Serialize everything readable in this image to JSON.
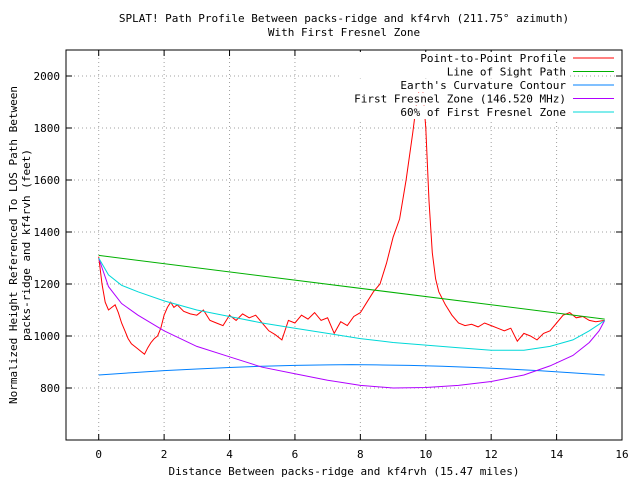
{
  "chart_data": {
    "type": "line",
    "title": "SPLAT! Path Profile Between packs-ridge and kf4rvh (211.75° azimuth)",
    "subtitle": "With First Fresnel Zone",
    "xlabel": "Distance Between packs-ridge and kf4rvh (15.47 miles)",
    "ylabel_lines": [
      "Normalized Height Referenced To LOS Path Between",
      "packs-ridge and kf4rvh (feet)"
    ],
    "xlim": [
      -1,
      16
    ],
    "ylim": [
      600,
      2100
    ],
    "x_ticks": [
      0,
      2,
      4,
      6,
      8,
      10,
      12,
      14,
      16
    ],
    "y_ticks": [
      800,
      1000,
      1200,
      1400,
      1600,
      1800,
      2000
    ],
    "grid": true,
    "legend_position": "top-right",
    "series": [
      {
        "name": "Point-to-Point Profile",
        "color": "#ff0000",
        "x": [
          0,
          0.1,
          0.2,
          0.3,
          0.4,
          0.5,
          0.6,
          0.7,
          0.8,
          0.9,
          1.0,
          1.1,
          1.2,
          1.3,
          1.4,
          1.5,
          1.6,
          1.7,
          1.8,
          1.9,
          2.0,
          2.1,
          2.2,
          2.3,
          2.4,
          2.6,
          2.8,
          3.0,
          3.2,
          3.4,
          3.6,
          3.8,
          4.0,
          4.2,
          4.4,
          4.6,
          4.8,
          5.0,
          5.2,
          5.4,
          5.6,
          5.8,
          6.0,
          6.2,
          6.4,
          6.6,
          6.8,
          7.0,
          7.2,
          7.4,
          7.6,
          7.8,
          8.0,
          8.2,
          8.4,
          8.6,
          8.8,
          9.0,
          9.2,
          9.4,
          9.6,
          9.7,
          9.8,
          9.9,
          10.0,
          10.1,
          10.2,
          10.3,
          10.4,
          10.6,
          10.8,
          11.0,
          11.2,
          11.4,
          11.6,
          11.8,
          12.0,
          12.2,
          12.4,
          12.6,
          12.8,
          13.0,
          13.2,
          13.4,
          13.6,
          13.8,
          14.0,
          14.2,
          14.4,
          14.6,
          14.8,
          15.0,
          15.2,
          15.47
        ],
        "y": [
          1305,
          1200,
          1130,
          1100,
          1110,
          1120,
          1090,
          1050,
          1020,
          990,
          970,
          960,
          950,
          940,
          930,
          955,
          975,
          990,
          1000,
          1030,
          1080,
          1110,
          1130,
          1110,
          1120,
          1095,
          1085,
          1080,
          1100,
          1060,
          1050,
          1040,
          1080,
          1060,
          1085,
          1070,
          1080,
          1050,
          1020,
          1005,
          985,
          1060,
          1050,
          1080,
          1065,
          1090,
          1060,
          1070,
          1010,
          1055,
          1040,
          1075,
          1090,
          1130,
          1170,
          1200,
          1280,
          1380,
          1450,
          1600,
          1780,
          1880,
          1950,
          1960,
          1800,
          1520,
          1320,
          1220,
          1170,
          1120,
          1080,
          1050,
          1040,
          1045,
          1035,
          1050,
          1040,
          1030,
          1020,
          1030,
          980,
          1010,
          1000,
          985,
          1010,
          1020,
          1050,
          1080,
          1090,
          1070,
          1075,
          1060,
          1055,
          1060
        ]
      },
      {
        "name": "Line of Sight Path",
        "color": "#00b000",
        "x": [
          0,
          15.47
        ],
        "y": [
          1310,
          1065
        ]
      },
      {
        "name": "Earth's Curvature Contour",
        "color": "#0080ff",
        "x": [
          0,
          1,
          2,
          3,
          4,
          5,
          6,
          7,
          7.735,
          8.5,
          9.5,
          10.5,
          11.5,
          12.5,
          13.5,
          14.5,
          15.47
        ],
        "y": [
          850,
          859,
          867,
          873,
          879,
          884,
          887,
          889,
          890,
          889,
          887,
          884,
          879,
          873,
          866,
          858,
          850
        ]
      },
      {
        "name": "First Fresnel Zone (146.520 MHz)",
        "color": "#b000ff",
        "x": [
          0,
          0.3,
          0.7,
          1.2,
          2,
          3,
          4,
          5,
          6,
          7,
          8,
          9,
          10,
          11,
          12,
          13,
          13.8,
          14.5,
          15.0,
          15.3,
          15.47
        ],
        "y": [
          1300,
          1190,
          1125,
          1080,
          1020,
          960,
          920,
          880,
          855,
          830,
          810,
          800,
          802,
          810,
          825,
          850,
          885,
          925,
          975,
          1020,
          1060
        ]
      },
      {
        "name": "60% of First Fresnel Zone",
        "color": "#00d8d8",
        "x": [
          0,
          0.3,
          0.7,
          1.2,
          2,
          3,
          4,
          5,
          6,
          7,
          8,
          9,
          10,
          11,
          12,
          13,
          13.8,
          14.5,
          15.0,
          15.3,
          15.47
        ],
        "y": [
          1300,
          1235,
          1195,
          1170,
          1135,
          1100,
          1075,
          1050,
          1030,
          1010,
          990,
          975,
          965,
          955,
          945,
          945,
          960,
          985,
          1020,
          1045,
          1060
        ]
      }
    ]
  }
}
